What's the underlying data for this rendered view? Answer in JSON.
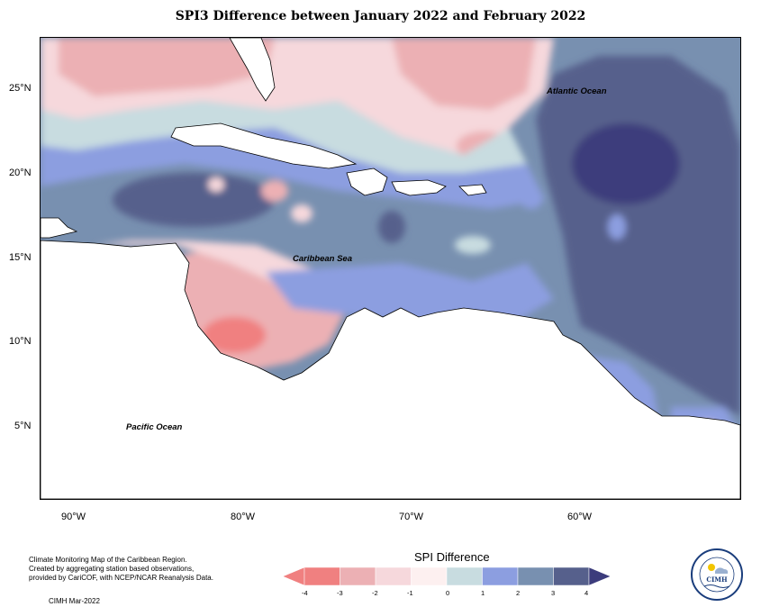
{
  "title": "SPI3 Difference between January 2022 and February 2022",
  "map": {
    "labels": {
      "atlantic": "Atlantic Ocean",
      "caribbean": "Caribbean Sea",
      "pacific": "Pacific Ocean"
    },
    "lat_ticks": [
      "25°N",
      "20°N",
      "15°N",
      "10°N",
      "5°N"
    ],
    "lon_ticks": [
      "90°W",
      "80°W",
      "70°W",
      "60°W"
    ]
  },
  "credits": {
    "line1": "Climate Monitoring Map of the Caribbean Region.",
    "line2": "Created by aggregating station based observations,",
    "line3": "provided by CariCOF, with NCEP/NCAR Reanalysis Data.",
    "date": "CIMH Mar-2022"
  },
  "legend": {
    "title": "SPI Difference",
    "ticks": [
      "-4",
      "-3",
      "-2",
      "-1",
      "0",
      "1",
      "2",
      "3",
      "4"
    ],
    "colors": [
      "#f08080",
      "#ecb0b4",
      "#f6d8dc",
      "#fdf0f0",
      "#c8dce0",
      "#8c9ee0",
      "#7890b0",
      "#56608c"
    ]
  },
  "logo": {
    "name": "CIMH"
  }
}
